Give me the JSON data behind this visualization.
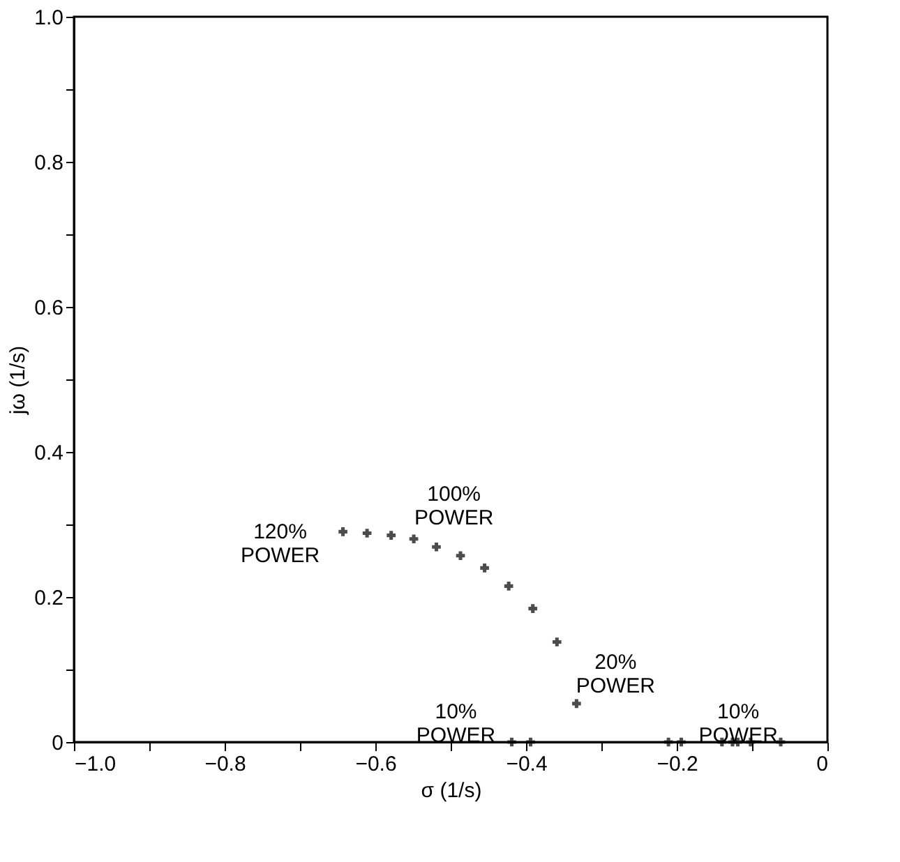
{
  "chart_data": {
    "type": "scatter",
    "xlabel": "σ (1/s)",
    "ylabel": "jω (1/s)",
    "x": [
      -0.643,
      -0.611,
      -0.579,
      -0.549,
      -0.519,
      -0.487,
      -0.455,
      -0.423,
      -0.391,
      -0.359,
      -0.333,
      -0.419,
      -0.394,
      -0.211,
      -0.194,
      -0.14,
      -0.126,
      -0.119,
      -0.102,
      -0.062
    ],
    "series": [
      {
        "color": "#000000",
        "values": [
          0.29,
          0.288,
          0.285,
          0.28,
          0.269,
          0.257,
          0.24,
          0.215,
          0.184,
          0.138,
          0.053,
          0,
          0,
          0,
          0,
          0,
          0,
          0,
          0,
          0
        ]
      }
    ],
    "marker": "cross",
    "grid": false,
    "xlim": [
      -1.0,
      0
    ],
    "ylim": [
      0,
      1.0
    ],
    "xticks": [
      {
        "value": -1.0,
        "label": "−1.0"
      },
      {
        "value": -0.9,
        "label": null
      },
      {
        "value": -0.8,
        "label": "−0.8"
      },
      {
        "value": -0.7,
        "label": null
      },
      {
        "value": -0.6,
        "label": "−0.6"
      },
      {
        "value": -0.5,
        "label": null
      },
      {
        "value": -0.4,
        "label": "−0.4"
      },
      {
        "value": -0.3,
        "label": null
      },
      {
        "value": -0.2,
        "label": "−0.2"
      },
      {
        "value": -0.1,
        "label": null
      },
      0
    ],
    "yticks": [
      0,
      {
        "value": 0.1,
        "label": null
      },
      0.2,
      {
        "value": 0.3,
        "label": null
      },
      0.4,
      {
        "value": 0.5,
        "label": null
      },
      0.6,
      {
        "value": 0.7,
        "label": null
      },
      0.8,
      {
        "value": 0.9,
        "label": null
      },
      {
        "value": 1.0,
        "label": "1.0"
      }
    ],
    "annotations": [
      {
        "text": "120%\nPOWER",
        "x": -0.643,
        "y": 0.29
      },
      {
        "text": "100%\nPOWER",
        "x": -0.579,
        "y": 0.285
      },
      {
        "text": "20%\nPOWER",
        "x": -0.333,
        "y": 0.053
      },
      {
        "text": "10%\nPOWER",
        "x": -0.419,
        "y": 0
      },
      {
        "text": "10%\nPOWER",
        "x": -0.211,
        "y": 0
      }
    ]
  }
}
